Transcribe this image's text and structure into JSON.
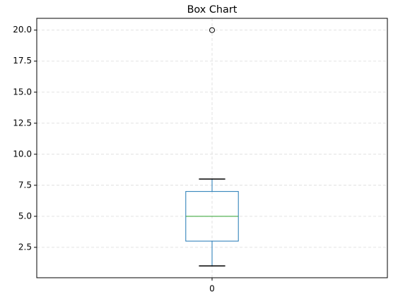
{
  "chart_data": {
    "type": "box",
    "title": "Box Chart",
    "categories": [
      "0"
    ],
    "boxes": [
      {
        "whislo": 1,
        "q1": 3,
        "med": 5,
        "q3": 7,
        "whishi": 8,
        "fliers": [
          20
        ]
      }
    ],
    "box_color": "#1f77b4",
    "median_color": "#2ca02c",
    "ylim": [
      0.05,
      20.95
    ],
    "yticks": [
      2.5,
      {
        "value": 5,
        "label": "5.0"
      },
      7.5,
      {
        "value": 10,
        "label": "10.0"
      },
      12.5,
      {
        "value": 15,
        "label": "15.0"
      },
      17.5,
      {
        "value": 20,
        "label": "20.0"
      }
    ],
    "grid": true
  }
}
